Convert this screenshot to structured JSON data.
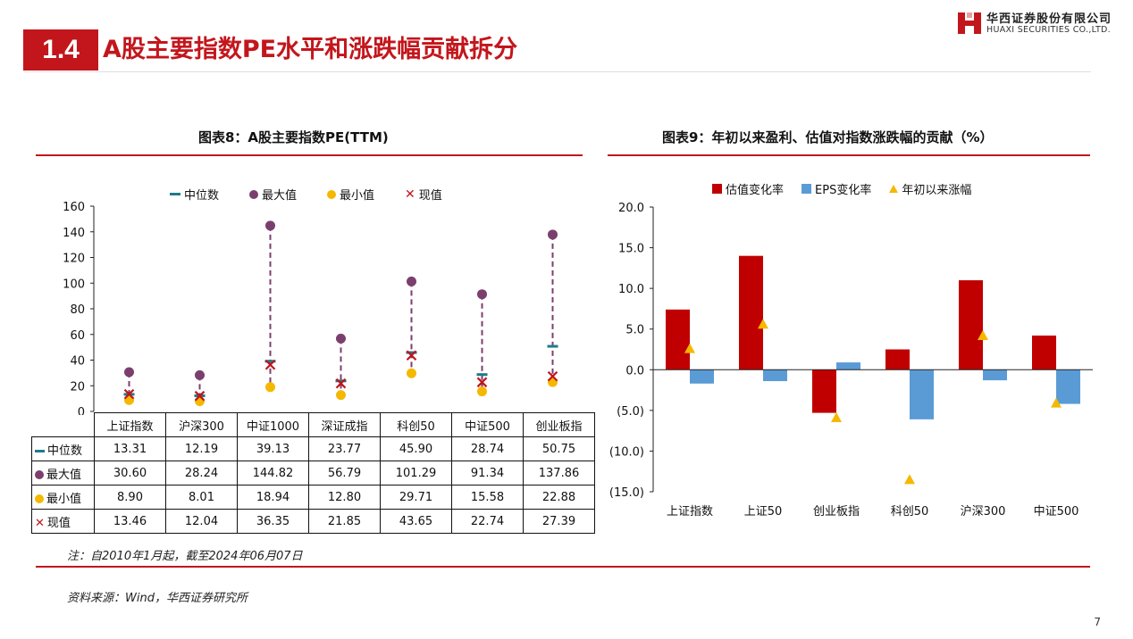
{
  "header": {
    "section_number": "1.4",
    "title": "A股主要指数PE水平和涨跌幅贡献拆分",
    "logo_cn": "华西证券股份有限公司",
    "logo_en": "HUAXI SECURITIES CO.,LTD."
  },
  "left_figure": {
    "title": "图表8：A股主要指数PE(TTM)"
  },
  "right_figure": {
    "title": "图表9：年初以来盈利、估值对指数涨跌幅的贡献（%）"
  },
  "table": {
    "columns": [
      "上证指数",
      "沪深300",
      "中证1000",
      "深证成指",
      "科创50",
      "中证500",
      "创业板指"
    ],
    "rows": [
      {
        "label": "中位数",
        "values": [
          "13.31",
          "12.19",
          "39.13",
          "23.77",
          "45.90",
          "28.74",
          "50.75"
        ]
      },
      {
        "label": "最大值",
        "values": [
          "30.60",
          "28.24",
          "144.82",
          "56.79",
          "101.29",
          "91.34",
          "137.86"
        ]
      },
      {
        "label": "最小值",
        "values": [
          "8.90",
          "8.01",
          "18.94",
          "12.80",
          "29.71",
          "15.58",
          "22.88"
        ]
      },
      {
        "label": "现值",
        "values": [
          "13.46",
          "12.04",
          "36.35",
          "21.85",
          "43.65",
          "22.74",
          "27.39"
        ]
      }
    ]
  },
  "notes": {
    "note": "注：自2010年1月起，截至2024年06月07日",
    "source": "资料来源：Wind，华西证券研究所"
  },
  "page_number": "7",
  "colors": {
    "brand_red": "#c3161c",
    "median": "#1f7a8c",
    "max": "#7b3f6e",
    "min": "#f5b800",
    "current": "#c0141c",
    "range_line": "#7b3f6e",
    "valuation_bar": "#c00000",
    "eps_bar": "#5b9bd5",
    "return_marker": "#f5b800"
  },
  "chart_data": [
    {
      "type": "scatter",
      "categories": [
        "上证指数",
        "沪深300",
        "中证1000",
        "深证成指",
        "科创50",
        "中证500",
        "创业板指"
      ],
      "series": [
        {
          "name": "中位数",
          "marker": "dash",
          "values": [
            13.31,
            12.19,
            39.13,
            23.77,
            45.9,
            28.74,
            50.75
          ]
        },
        {
          "name": "最大值",
          "marker": "circle",
          "values": [
            30.6,
            28.24,
            144.82,
            56.79,
            101.29,
            91.34,
            137.86
          ]
        },
        {
          "name": "最小值",
          "marker": "circle",
          "values": [
            8.9,
            8.01,
            18.94,
            12.8,
            29.71,
            15.58,
            22.88
          ]
        },
        {
          "name": "现值",
          "marker": "x",
          "values": [
            13.46,
            12.04,
            36.35,
            21.85,
            43.65,
            22.74,
            27.39
          ]
        }
      ],
      "ylim": [
        0,
        160
      ],
      "yticks": [
        0,
        20,
        40,
        60,
        80,
        100,
        120,
        140,
        160
      ],
      "ytick_labels": [
        "0",
        "20",
        "40",
        "60",
        "80",
        "100",
        "120",
        "140",
        "160"
      ],
      "legend_position": "top",
      "grid": false
    },
    {
      "type": "bar",
      "categories": [
        "上证指数",
        "上证50",
        "创业板指",
        "科创50",
        "沪深300",
        "中证500"
      ],
      "series": [
        {
          "name": "估值变化率",
          "kind": "bar",
          "values": [
            7.4,
            14.0,
            -5.3,
            2.5,
            11.0,
            4.2
          ]
        },
        {
          "name": "EPS变化率",
          "kind": "bar",
          "values": [
            -1.7,
            -1.4,
            0.9,
            -6.1,
            -1.3,
            -4.2
          ]
        },
        {
          "name": "年初以来涨幅",
          "kind": "marker",
          "values": [
            2.6,
            5.6,
            -5.9,
            -13.5,
            4.2,
            -4.1
          ]
        }
      ],
      "ylim": [
        -15,
        20
      ],
      "yticks": [
        20,
        15,
        10,
        5,
        0,
        -5,
        -10,
        -15
      ],
      "ytick_labels": [
        "20.0",
        "15.0",
        "10.0",
        "5.0",
        "0.0",
        "(5.0)",
        "(10.0)",
        "(15.0)"
      ],
      "legend_position": "top",
      "grid": false
    }
  ]
}
